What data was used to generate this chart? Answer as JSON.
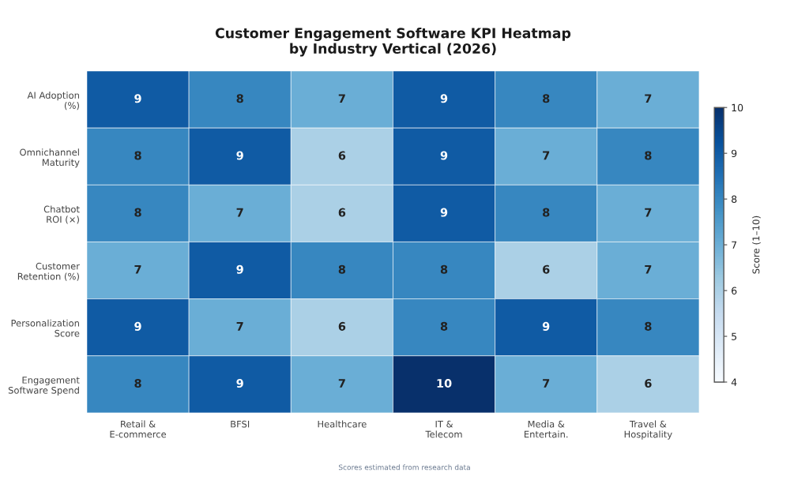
{
  "chart_data": {
    "type": "heatmap",
    "title": "Customer Engagement Software KPI Heatmap\nby Industry Vertical (2026)",
    "categories": [
      "Retail &\nE-commerce",
      "BFSI",
      "Healthcare",
      "IT &\nTelecom",
      "Media &\nEntertain.",
      "Travel &\nHospitality"
    ],
    "y_categories": [
      "AI Adoption\n(%)",
      "Omnichannel\nMaturity",
      "Chatbot\nROI (×)",
      "Customer\nRetention (%)",
      "Personalization\nScore",
      "Engagement\nSoftware Spend"
    ],
    "cells": [
      [
        9,
        8,
        7,
        9,
        8,
        7
      ],
      [
        8,
        9,
        6,
        9,
        7,
        8
      ],
      [
        8,
        7,
        6,
        9,
        8,
        7
      ],
      [
        7,
        9,
        8,
        8,
        6,
        7
      ],
      [
        9,
        7,
        6,
        8,
        9,
        8
      ],
      [
        8,
        9,
        7,
        10,
        7,
        6
      ]
    ],
    "clim": [
      4,
      10
    ],
    "cticks": [
      4,
      5,
      6,
      7,
      8,
      9,
      10
    ],
    "clabel": "Score (1–10)",
    "data_labels": true,
    "annotations": [
      "Scores estimated from research data"
    ]
  }
}
